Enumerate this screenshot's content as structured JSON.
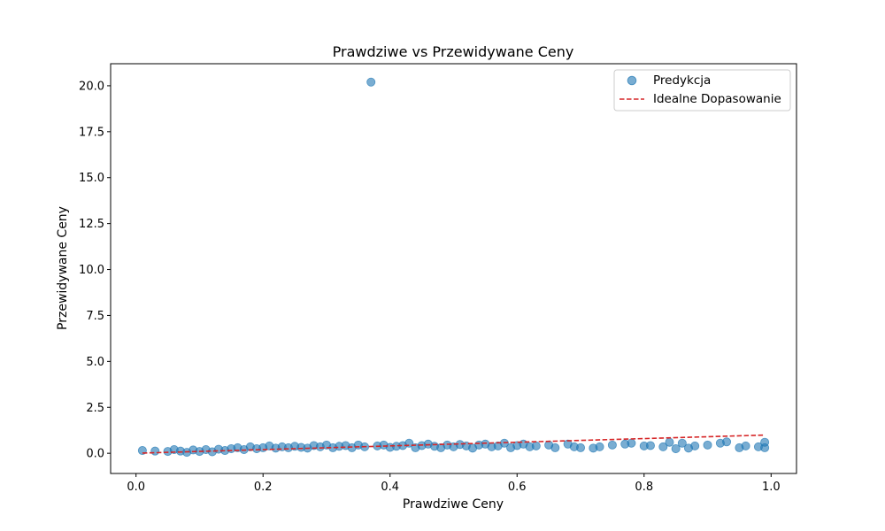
{
  "chart_data": {
    "type": "scatter",
    "title": "Prawdziwe vs Przewidywane Ceny",
    "xlabel": "Prawdziwe Ceny",
    "ylabel": "Przewidywane Ceny",
    "xlim": [
      -0.04,
      1.04
    ],
    "ylim": [
      -1.1,
      21.2
    ],
    "xticks": [
      0.0,
      0.2,
      0.4,
      0.6,
      0.8,
      1.0
    ],
    "xtick_labels": [
      "0.0",
      "0.2",
      "0.4",
      "0.6",
      "0.8",
      "1.0"
    ],
    "yticks": [
      0.0,
      2.5,
      5.0,
      7.5,
      10.0,
      12.5,
      15.0,
      17.5,
      20.0
    ],
    "ytick_labels": [
      "0.0",
      "2.5",
      "5.0",
      "7.5",
      "10.0",
      "12.5",
      "15.0",
      "17.5",
      "20.0"
    ],
    "grid": false,
    "legend_position": "top-right",
    "colors": {
      "scatter": "#1f77b4",
      "ideal_line": "#d62728"
    },
    "series": [
      {
        "name": "Predykcja",
        "kind": "scatter",
        "points": [
          [
            0.01,
            0.15
          ],
          [
            0.03,
            0.12
          ],
          [
            0.05,
            0.1
          ],
          [
            0.06,
            0.2
          ],
          [
            0.07,
            0.12
          ],
          [
            0.08,
            0.05
          ],
          [
            0.09,
            0.18
          ],
          [
            0.1,
            0.1
          ],
          [
            0.11,
            0.2
          ],
          [
            0.12,
            0.08
          ],
          [
            0.13,
            0.22
          ],
          [
            0.14,
            0.15
          ],
          [
            0.15,
            0.25
          ],
          [
            0.16,
            0.3
          ],
          [
            0.17,
            0.2
          ],
          [
            0.18,
            0.35
          ],
          [
            0.19,
            0.25
          ],
          [
            0.2,
            0.3
          ],
          [
            0.21,
            0.4
          ],
          [
            0.22,
            0.28
          ],
          [
            0.23,
            0.35
          ],
          [
            0.24,
            0.3
          ],
          [
            0.25,
            0.38
          ],
          [
            0.26,
            0.32
          ],
          [
            0.27,
            0.28
          ],
          [
            0.28,
            0.42
          ],
          [
            0.29,
            0.35
          ],
          [
            0.3,
            0.45
          ],
          [
            0.31,
            0.3
          ],
          [
            0.32,
            0.38
          ],
          [
            0.33,
            0.42
          ],
          [
            0.34,
            0.3
          ],
          [
            0.35,
            0.45
          ],
          [
            0.36,
            0.35
          ],
          [
            0.37,
            20.2
          ],
          [
            0.38,
            0.4
          ],
          [
            0.39,
            0.45
          ],
          [
            0.4,
            0.32
          ],
          [
            0.41,
            0.38
          ],
          [
            0.42,
            0.42
          ],
          [
            0.43,
            0.55
          ],
          [
            0.44,
            0.3
          ],
          [
            0.45,
            0.42
          ],
          [
            0.46,
            0.5
          ],
          [
            0.47,
            0.38
          ],
          [
            0.48,
            0.3
          ],
          [
            0.49,
            0.45
          ],
          [
            0.5,
            0.35
          ],
          [
            0.51,
            0.48
          ],
          [
            0.52,
            0.4
          ],
          [
            0.53,
            0.28
          ],
          [
            0.54,
            0.45
          ],
          [
            0.55,
            0.5
          ],
          [
            0.56,
            0.35
          ],
          [
            0.57,
            0.4
          ],
          [
            0.58,
            0.55
          ],
          [
            0.59,
            0.3
          ],
          [
            0.6,
            0.42
          ],
          [
            0.61,
            0.5
          ],
          [
            0.62,
            0.35
          ],
          [
            0.63,
            0.4
          ],
          [
            0.65,
            0.45
          ],
          [
            0.66,
            0.3
          ],
          [
            0.68,
            0.5
          ],
          [
            0.69,
            0.35
          ],
          [
            0.7,
            0.3
          ],
          [
            0.72,
            0.28
          ],
          [
            0.73,
            0.35
          ],
          [
            0.75,
            0.45
          ],
          [
            0.77,
            0.5
          ],
          [
            0.78,
            0.55
          ],
          [
            0.8,
            0.4
          ],
          [
            0.81,
            0.42
          ],
          [
            0.83,
            0.35
          ],
          [
            0.84,
            0.6
          ],
          [
            0.85,
            0.25
          ],
          [
            0.86,
            0.55
          ],
          [
            0.87,
            0.28
          ],
          [
            0.88,
            0.4
          ],
          [
            0.9,
            0.45
          ],
          [
            0.92,
            0.55
          ],
          [
            0.93,
            0.62
          ],
          [
            0.95,
            0.3
          ],
          [
            0.96,
            0.4
          ],
          [
            0.98,
            0.35
          ],
          [
            0.99,
            0.6
          ],
          [
            0.99,
            0.3
          ]
        ]
      },
      {
        "name": "Idealne Dopasowanie",
        "kind": "line",
        "style": "dashed",
        "x": [
          0.01,
          0.99
        ],
        "y": [
          0.01,
          0.99
        ]
      }
    ]
  }
}
